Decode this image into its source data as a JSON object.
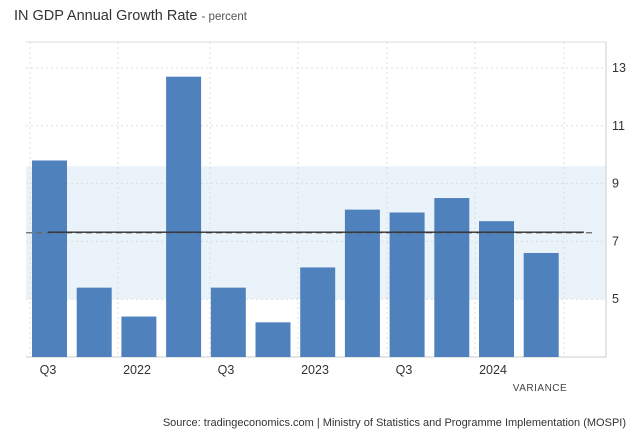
{
  "header": {
    "title": "IN GDP Annual Growth Rate",
    "subtitle": "- percent"
  },
  "footer": {
    "source": "Source: tradingeconomics.com | Ministry of Statistics and Programme Implementation (MOSPI)"
  },
  "colors": {
    "bar": "#4f81bd",
    "band": "#eaf3fa",
    "grid": "#dddddd",
    "mean_line": "#333333",
    "dashed_line": "#666666"
  },
  "chart_data": {
    "type": "bar",
    "title": "IN GDP Annual Growth Rate",
    "subtitle": "- percent",
    "x_ticks": [
      "Q3",
      "2022",
      "Q3",
      "2023",
      "Q3",
      "2024"
    ],
    "values": [
      9.8,
      5.4,
      4.4,
      12.7,
      5.4,
      4.2,
      6.1,
      8.1,
      8.0,
      8.5,
      7.7,
      6.6
    ],
    "ylim": [
      3.0,
      13.9
    ],
    "y_ticks": [
      5,
      7,
      9,
      11,
      13
    ],
    "grid": true,
    "y_axis_side": "right",
    "annotation": "VARIANCE",
    "mean": 7.3,
    "std_band": [
      5.0,
      9.6
    ]
  }
}
